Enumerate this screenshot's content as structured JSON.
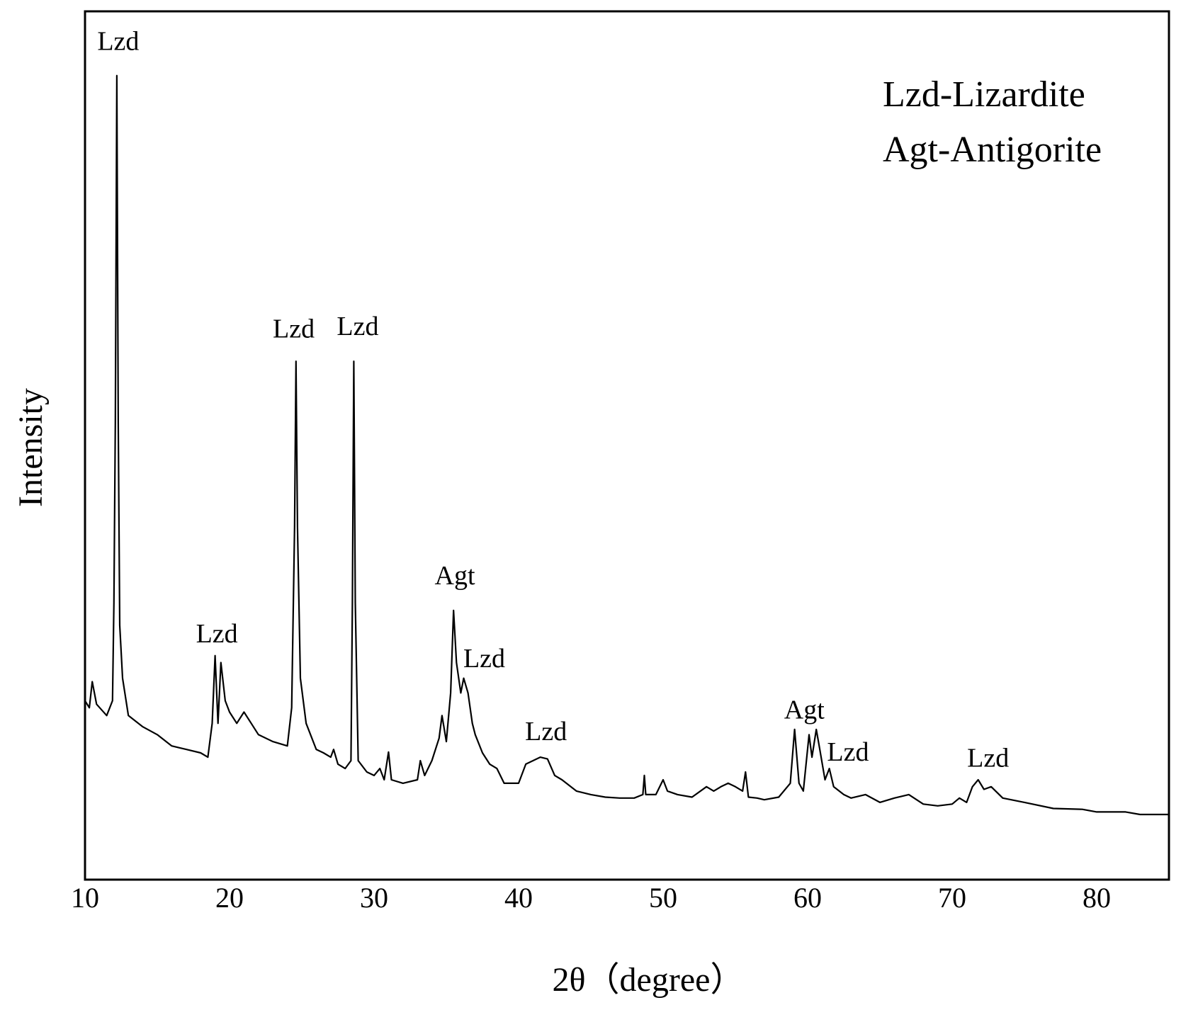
{
  "chart_data": {
    "type": "line",
    "x_label": "2θ（degree）",
    "y_label": "Intensity",
    "key": [
      "Lzd-Lizardite",
      "Agt-Antigorite"
    ],
    "annotations": [
      "Lzd",
      "Lzd",
      "Lzd",
      "Lzd",
      "Agt",
      "Lzd",
      "Lzd",
      "Agt",
      "Lzd",
      "Lzd"
    ],
    "xlim": [
      10,
      85
    ],
    "xticks": [
      10,
      20,
      30,
      40,
      50,
      60,
      70,
      80
    ],
    "ylim": [
      0,
      100
    ],
    "grid": false,
    "series": [
      {
        "name": "Intensity",
        "color": "#000000",
        "x": [
          10,
          10.3,
          10.5,
          10.8,
          11.5,
          11.9,
          12.0,
          12.1,
          12.2,
          12.3,
          12.4,
          12.6,
          13,
          14,
          15,
          16,
          17,
          18,
          18.5,
          18.8,
          19.0,
          19.2,
          19.4,
          19.7,
          20,
          20.5,
          21,
          21.5,
          22,
          23,
          24,
          24.3,
          24.5,
          24.6,
          24.7,
          24.9,
          25.3,
          26,
          26.5,
          27,
          27.2,
          27.5,
          28,
          28.4,
          28.5,
          28.6,
          28.7,
          28.9,
          29.5,
          30,
          30.4,
          30.7,
          31.0,
          31.2,
          32,
          33,
          33.2,
          33.5,
          34,
          34.5,
          34.7,
          35,
          35.3,
          35.5,
          35.7,
          36,
          36.2,
          36.5,
          36.8,
          37,
          37.5,
          38,
          38.5,
          39,
          40,
          40.5,
          41,
          41.5,
          42,
          42.5,
          43,
          44,
          45,
          46,
          47,
          48,
          48.6,
          48.7,
          48.8,
          49.5,
          50,
          50.3,
          51,
          52,
          53,
          53.5,
          54,
          54.5,
          55,
          55.5,
          55.7,
          55.9,
          56.5,
          57,
          58,
          58.8,
          59.1,
          59.4,
          59.7,
          60.1,
          60.3,
          60.6,
          60.8,
          61.2,
          61.5,
          61.8,
          62.5,
          63,
          64,
          65,
          66,
          67,
          68,
          69,
          70,
          70.5,
          71,
          71.4,
          71.8,
          72.2,
          72.7,
          73.5,
          75,
          77,
          79,
          80,
          82,
          83,
          85
        ],
        "values": [
          20.6,
          19.8,
          22.8,
          20.2,
          18.9,
          20.6,
          31.9,
          52.7,
          92.6,
          52.7,
          29.3,
          23.2,
          18.9,
          17.6,
          16.7,
          15.4,
          15.0,
          14.6,
          14.1,
          18.0,
          25.8,
          18.0,
          25.0,
          20.6,
          19.3,
          18.0,
          19.3,
          18.0,
          16.7,
          15.9,
          15.4,
          19.8,
          40.6,
          59.7,
          40.6,
          23.2,
          18.0,
          15.0,
          14.6,
          14.1,
          15.0,
          13.3,
          12.8,
          13.7,
          31.9,
          59.7,
          31.9,
          13.7,
          12.4,
          12.0,
          12.8,
          11.5,
          14.7,
          11.5,
          11.1,
          11.5,
          13.7,
          12.0,
          13.7,
          16.3,
          18.9,
          15.9,
          21.5,
          31.0,
          25.0,
          21.5,
          23.2,
          21.5,
          18.0,
          16.7,
          14.6,
          13.3,
          12.8,
          11.1,
          11.1,
          13.3,
          13.7,
          14.1,
          13.9,
          12.0,
          11.5,
          10.2,
          9.8,
          9.5,
          9.4,
          9.4,
          9.8,
          12.0,
          9.8,
          9.8,
          11.5,
          10.2,
          9.8,
          9.5,
          10.7,
          10.2,
          10.7,
          11.1,
          10.7,
          10.2,
          12.4,
          9.5,
          9.4,
          9.2,
          9.5,
          11.1,
          17.3,
          11.1,
          10.2,
          16.7,
          14.1,
          17.3,
          15.4,
          11.5,
          12.8,
          10.7,
          9.8,
          9.4,
          9.8,
          8.9,
          9.4,
          9.8,
          8.7,
          8.5,
          8.7,
          9.4,
          8.9,
          10.7,
          11.5,
          10.4,
          10.7,
          9.4,
          8.9,
          8.2,
          8.1,
          7.8,
          7.8,
          7.5,
          7.5
        ]
      }
    ]
  }
}
